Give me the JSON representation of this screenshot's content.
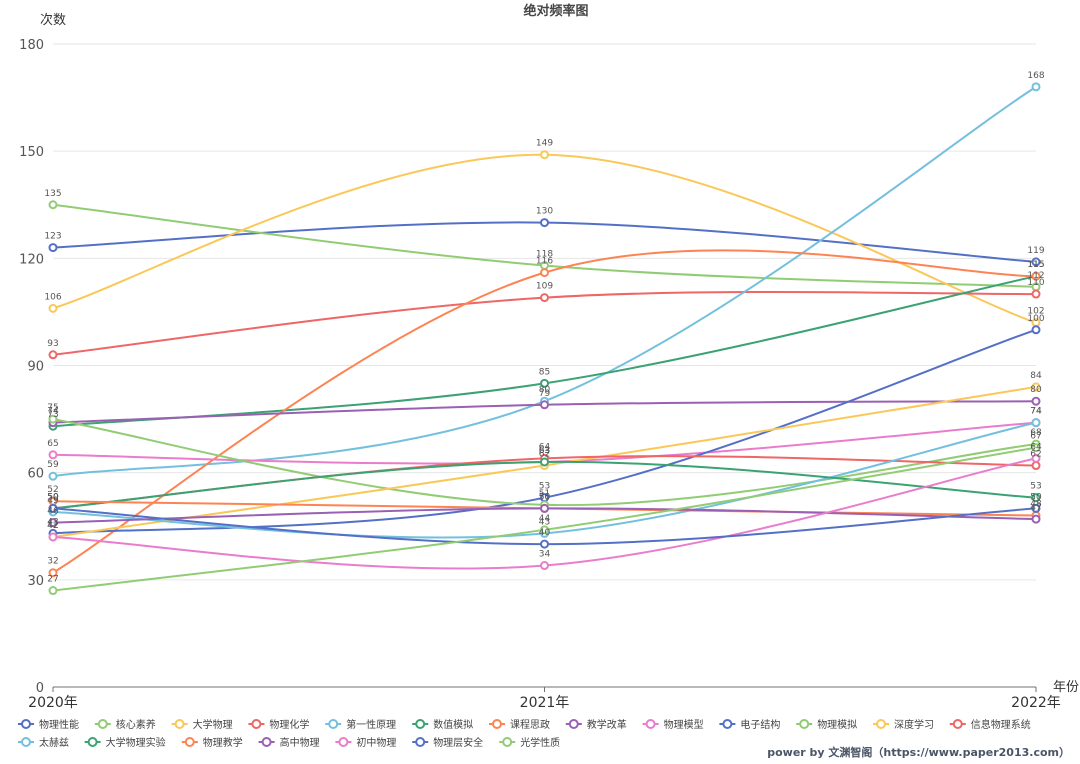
{
  "chart_data": {
    "type": "line",
    "title": "绝对频率图",
    "xlabel": "年份",
    "ylabel": "次数",
    "x": [
      "2020年",
      "2021年",
      "2022年"
    ],
    "ylim": [
      0,
      180
    ],
    "yticks": [
      0,
      30,
      60,
      90,
      120,
      150,
      180
    ],
    "grid": true,
    "legend_position": "bottom-left",
    "series": [
      {
        "name": "物理性能",
        "color": "#5470c6",
        "values": [
          123,
          130,
          119
        ]
      },
      {
        "name": "核心素养",
        "color": "#91cc75",
        "values": [
          135,
          118,
          112
        ]
      },
      {
        "name": "大学物理",
        "color": "#fac858",
        "values": [
          106,
          149,
          102
        ]
      },
      {
        "name": "物理化学",
        "color": "#ee6666",
        "values": [
          93,
          109,
          110
        ]
      },
      {
        "name": "第一性原理",
        "color": "#73c0de",
        "values": [
          59,
          80,
          168
        ]
      },
      {
        "name": "数值模拟",
        "color": "#3ba272",
        "values": [
          73,
          85,
          115
        ]
      },
      {
        "name": "课程思政",
        "color": "#fc8452",
        "values": [
          32,
          116,
          115
        ]
      },
      {
        "name": "教学改革",
        "color": "#9a60b4",
        "values": [
          74,
          79,
          80
        ]
      },
      {
        "name": "物理模型",
        "color": "#ea7ccc",
        "values": [
          65,
          63,
          74
        ]
      },
      {
        "name": "电子结构",
        "color": "#5470c6",
        "values": [
          43,
          53,
          100
        ]
      },
      {
        "name": "物理模拟",
        "color": "#91cc75",
        "values": [
          75,
          51,
          68
        ]
      },
      {
        "name": "深度学习",
        "color": "#fac858",
        "values": [
          42,
          62,
          84
        ]
      },
      {
        "name": "信息物理系统",
        "color": "#ee6666",
        "values": [
          50,
          64,
          62
        ]
      },
      {
        "name": "太赫兹",
        "color": "#73c0de",
        "values": [
          49,
          43,
          74
        ]
      },
      {
        "name": "大学物理实验",
        "color": "#3ba272",
        "values": [
          50,
          63,
          53
        ]
      },
      {
        "name": "物理教学",
        "color": "#fc8452",
        "values": [
          52,
          50,
          48
        ]
      },
      {
        "name": "高中物理",
        "color": "#9a60b4",
        "values": [
          46,
          50,
          47
        ]
      },
      {
        "name": "初中物理",
        "color": "#ea7ccc",
        "values": [
          42,
          34,
          64
        ]
      },
      {
        "name": "物理层安全",
        "color": "#5470c6",
        "values": [
          50,
          40,
          50
        ]
      },
      {
        "name": "光学性质",
        "color": "#91cc75",
        "values": [
          27,
          44,
          67
        ]
      }
    ]
  },
  "footer": "power by 文渊智阁（https://www.paper2013.com）"
}
